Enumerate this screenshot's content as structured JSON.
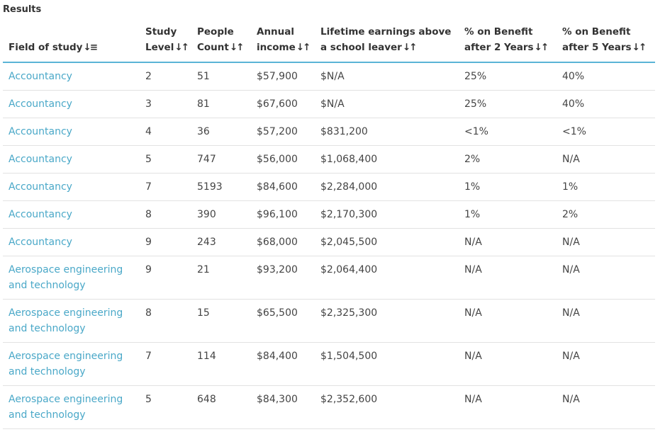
{
  "heading": "Results",
  "columns": [
    {
      "line1": "",
      "line2": "Field of study",
      "icon": "↓≡"
    },
    {
      "line1": "Study",
      "line2": "Level",
      "icon": "↓↑"
    },
    {
      "line1": "People",
      "line2": "Count",
      "icon": "↓↑"
    },
    {
      "line1": "Annual",
      "line2": "income",
      "icon": "↓↑"
    },
    {
      "line1": "Lifetime earnings above",
      "line2": "a school leaver",
      "icon": "↓↑"
    },
    {
      "line1": "% on Benefit",
      "line2": "after 2 Years",
      "icon": "↓↑"
    },
    {
      "line1": "% on Benefit",
      "line2": "after 5 Years",
      "icon": "↓↑"
    }
  ],
  "rows": [
    {
      "field": "Accountancy",
      "level": "2",
      "count": "51",
      "income": "$57,900",
      "lifetime": "$N/A",
      "benefit2": "25%",
      "benefit5": "40%"
    },
    {
      "field": "Accountancy",
      "level": "3",
      "count": "81",
      "income": "$67,600",
      "lifetime": "$N/A",
      "benefit2": "25%",
      "benefit5": "40%"
    },
    {
      "field": "Accountancy",
      "level": "4",
      "count": "36",
      "income": "$57,200",
      "lifetime": "$831,200",
      "benefit2": "<1%",
      "benefit5": "<1%"
    },
    {
      "field": "Accountancy",
      "level": "5",
      "count": "747",
      "income": "$56,000",
      "lifetime": "$1,068,400",
      "benefit2": "2%",
      "benefit5": "N/A"
    },
    {
      "field": "Accountancy",
      "level": "7",
      "count": "5193",
      "income": "$84,600",
      "lifetime": "$2,284,000",
      "benefit2": "1%",
      "benefit5": "1%"
    },
    {
      "field": "Accountancy",
      "level": "8",
      "count": "390",
      "income": "$96,100",
      "lifetime": "$2,170,300",
      "benefit2": "1%",
      "benefit5": "2%"
    },
    {
      "field": "Accountancy",
      "level": "9",
      "count": "243",
      "income": "$68,000",
      "lifetime": "$2,045,500",
      "benefit2": "N/A",
      "benefit5": "N/A"
    },
    {
      "field": "Aerospace engineering and technology",
      "level": "9",
      "count": "21",
      "income": "$93,200",
      "lifetime": "$2,064,400",
      "benefit2": "N/A",
      "benefit5": "N/A"
    },
    {
      "field": "Aerospace engineering and technology",
      "level": "8",
      "count": "15",
      "income": "$65,500",
      "lifetime": "$2,325,300",
      "benefit2": "N/A",
      "benefit5": "N/A"
    },
    {
      "field": "Aerospace engineering and technology",
      "level": "7",
      "count": "114",
      "income": "$84,400",
      "lifetime": "$1,504,500",
      "benefit2": "N/A",
      "benefit5": "N/A"
    },
    {
      "field": "Aerospace engineering and technology",
      "level": "5",
      "count": "648",
      "income": "$84,300",
      "lifetime": "$2,352,600",
      "benefit2": "N/A",
      "benefit5": "N/A"
    }
  ]
}
